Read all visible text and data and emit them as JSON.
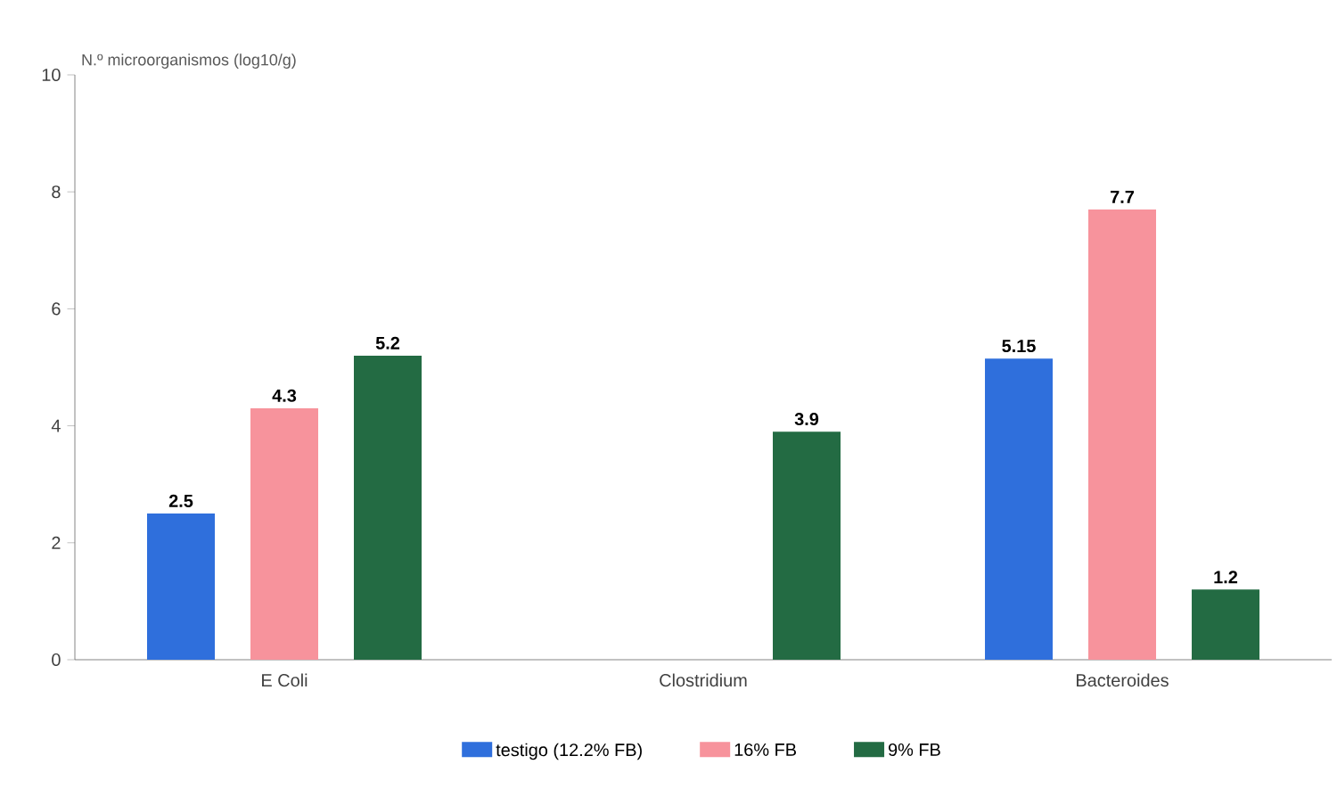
{
  "chart_data": {
    "type": "bar",
    "ylabel": "N.º microorganismos (log10/g)",
    "categories": [
      "E Coli",
      "Clostridium",
      "Bacteroides"
    ],
    "series": [
      {
        "name": "testigo (12.2% FB)",
        "color": "#2f6fdc",
        "values": [
          2.5,
          null,
          5.15
        ]
      },
      {
        "name": "16% FB",
        "color": "#f7939c",
        "values": [
          4.3,
          null,
          7.7
        ]
      },
      {
        "name": "9% FB",
        "color": "#236b43",
        "values": [
          5.2,
          3.9,
          1.2
        ]
      }
    ],
    "ylim": [
      0,
      10
    ],
    "yticks": [
      0,
      2,
      4,
      6,
      8,
      10
    ],
    "data_labels": true,
    "legend": "bottom",
    "grid": false
  }
}
